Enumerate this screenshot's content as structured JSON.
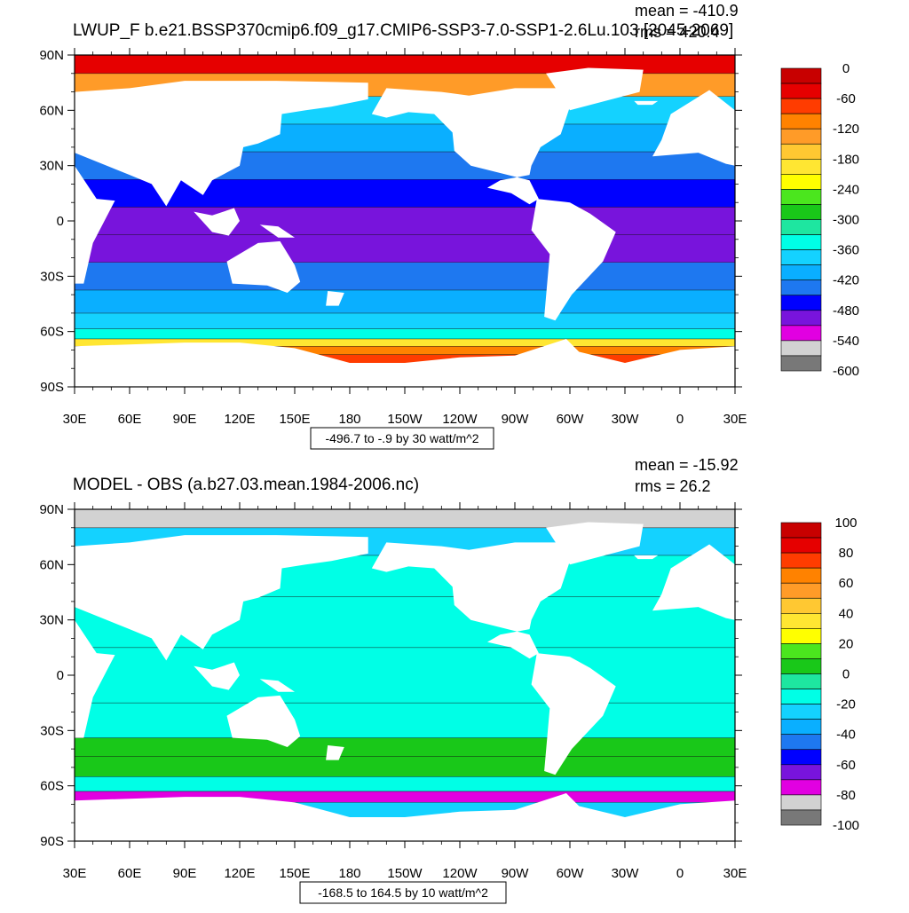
{
  "chart_data": [
    {
      "type": "heatmap",
      "title": "LWUP_F b.e21.BSSP370cmip6.f09_g17.CMIP6-SSP3-7.0-SSP1-2.6Lu.103 [2045-2069]",
      "mean_text": "mean = -410.9",
      "rms_text": "rms = 420.4",
      "range_text": "-496.7 to -.9 by 30 watt/m^2",
      "x_tick_labels": [
        "30E",
        "60E",
        "90E",
        "120E",
        "150E",
        "180",
        "150W",
        "120W",
        "90W",
        "60W",
        "30W",
        "0",
        "30E"
      ],
      "y_tick_labels": [
        "90N",
        "60N",
        "30N",
        "0",
        "30S",
        "60S",
        "90S"
      ],
      "xlim": [
        30,
        390
      ],
      "ylim": [
        -90,
        90
      ],
      "colorbar": {
        "labels": [
          "0",
          "-60",
          "-120",
          "-180",
          "-240",
          "-300",
          "-360",
          "-420",
          "-480",
          "-540",
          "-600"
        ],
        "colors": [
          "#c80000",
          "#e60000",
          "#ff3c00",
          "#ff8200",
          "#ff9b28",
          "#ffc832",
          "#ffe632",
          "#ffff00",
          "#4be61e",
          "#19c819",
          "#1ee6a0",
          "#00ffe6",
          "#14d2ff",
          "#0aafff",
          "#1e78f0",
          "#0000ff",
          "#7814dc",
          "#e100e1",
          "#d2d2d2",
          "#787878"
        ]
      },
      "zonal_values": [
        {
          "lat": 85,
          "value": -30
        },
        {
          "lat": 75,
          "value": -120
        },
        {
          "lat": 60,
          "value": -360
        },
        {
          "lat": 45,
          "value": -390
        },
        {
          "lat": 30,
          "value": -420
        },
        {
          "lat": 15,
          "value": -460
        },
        {
          "lat": 0,
          "value": -490
        },
        {
          "lat": -15,
          "value": -480
        },
        {
          "lat": -30,
          "value": -440
        },
        {
          "lat": -45,
          "value": -400
        },
        {
          "lat": -55,
          "value": -360
        },
        {
          "lat": -62,
          "value": -330
        },
        {
          "lat": -66,
          "value": -200
        },
        {
          "lat": -70,
          "value": -100
        },
        {
          "lat": -75,
          "value": -60
        }
      ]
    },
    {
      "type": "heatmap",
      "title": "MODEL - OBS (a.b27.03.mean.1984-2006.nc)",
      "mean_text": "mean = -15.92",
      "rms_text": "rms = 26.2",
      "range_text": "-168.5 to 164.5 by 10 watt/m^2",
      "x_tick_labels": [
        "30E",
        "60E",
        "90E",
        "120E",
        "150E",
        "180",
        "150W",
        "120W",
        "90W",
        "60W",
        "30W",
        "0",
        "30E"
      ],
      "y_tick_labels": [
        "90N",
        "60N",
        "30N",
        "0",
        "30S",
        "60S",
        "90S"
      ],
      "xlim": [
        30,
        390
      ],
      "ylim": [
        -90,
        90
      ],
      "colorbar": {
        "labels": [
          "100",
          "80",
          "60",
          "40",
          "20",
          "0",
          "-20",
          "-40",
          "-60",
          "-80",
          "-100"
        ],
        "colors": [
          "#c80000",
          "#e60000",
          "#ff3c00",
          "#ff8200",
          "#ff9b28",
          "#ffc832",
          "#ffe632",
          "#ffff00",
          "#4be61e",
          "#19c819",
          "#1ee6a0",
          "#00ffe6",
          "#14d2ff",
          "#0aafff",
          "#1e78f0",
          "#0000ff",
          "#7814dc",
          "#e100e1",
          "#d2d2d2",
          "#787878"
        ]
      },
      "zonal_values": [
        {
          "lat": 85,
          "value": -85
        },
        {
          "lat": 75,
          "value": -25
        },
        {
          "lat": 55,
          "value": -15
        },
        {
          "lat": 30,
          "value": -15
        },
        {
          "lat": 0,
          "value": -15
        },
        {
          "lat": -30,
          "value": -12
        },
        {
          "lat": -38,
          "value": 5
        },
        {
          "lat": -50,
          "value": 2
        },
        {
          "lat": -60,
          "value": -10
        },
        {
          "lat": -66,
          "value": -70
        },
        {
          "lat": -72,
          "value": -25
        }
      ]
    }
  ]
}
